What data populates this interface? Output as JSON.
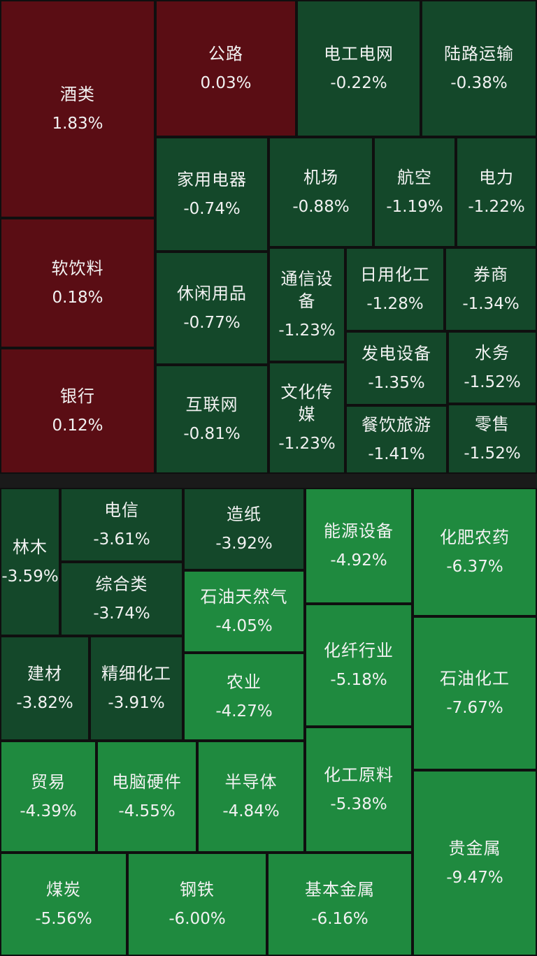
{
  "colors": {
    "up": "#5a0d14",
    "down_dark": "#14482a",
    "down_mid": "#1a6b34",
    "down_bright": "#1f8a3f",
    "background": "#1a1a1a",
    "text": "#f2f2f2"
  },
  "sectors": [
    {
      "name": "酒类",
      "change": "1.83%"
    },
    {
      "name": "公路",
      "change": "0.03%"
    },
    {
      "name": "电工电网",
      "change": "-0.22%"
    },
    {
      "name": "陆路运输",
      "change": "-0.38%"
    },
    {
      "name": "家用电器",
      "change": "-0.74%"
    },
    {
      "name": "机场",
      "change": "-0.88%"
    },
    {
      "name": "航空",
      "change": "-1.19%"
    },
    {
      "name": "电力",
      "change": "-1.22%"
    },
    {
      "name": "软饮料",
      "change": "0.18%"
    },
    {
      "name": "休闲用品",
      "change": "-0.77%"
    },
    {
      "name": "通信设备",
      "change": "-1.23%"
    },
    {
      "name": "日用化工",
      "change": "-1.28%"
    },
    {
      "name": "券商",
      "change": "-1.34%"
    },
    {
      "name": "发电设备",
      "change": "-1.35%"
    },
    {
      "name": "水务",
      "change": "-1.52%"
    },
    {
      "name": "银行",
      "change": "0.12%"
    },
    {
      "name": "互联网",
      "change": "-0.81%"
    },
    {
      "name": "文化传媒",
      "change": "-1.23%"
    },
    {
      "name": "餐饮旅游",
      "change": "-1.41%"
    },
    {
      "name": "零售",
      "change": "-1.52%"
    },
    {
      "name": "林木",
      "change": "-3.59%"
    },
    {
      "name": "电信",
      "change": "-3.61%"
    },
    {
      "name": "综合类",
      "change": "-3.74%"
    },
    {
      "name": "造纸",
      "change": "-3.92%"
    },
    {
      "name": "石油天然气",
      "change": "-4.05%"
    },
    {
      "name": "能源设备",
      "change": "-4.92%"
    },
    {
      "name": "化肥农药",
      "change": "-6.37%"
    },
    {
      "name": "建材",
      "change": "-3.82%"
    },
    {
      "name": "精细化工",
      "change": "-3.91%"
    },
    {
      "name": "农业",
      "change": "-4.27%"
    },
    {
      "name": "化纤行业",
      "change": "-5.18%"
    },
    {
      "name": "石油化工",
      "change": "-7.67%"
    },
    {
      "name": "贸易",
      "change": "-4.39%"
    },
    {
      "name": "电脑硬件",
      "change": "-4.55%"
    },
    {
      "name": "半导体",
      "change": "-4.84%"
    },
    {
      "name": "化工原料",
      "change": "-5.38%"
    },
    {
      "name": "贵金属",
      "change": "-9.47%"
    },
    {
      "name": "煤炭",
      "change": "-5.56%"
    },
    {
      "name": "钢铁",
      "change": "-6.00%"
    },
    {
      "name": "基本金属",
      "change": "-6.16%"
    }
  ]
}
